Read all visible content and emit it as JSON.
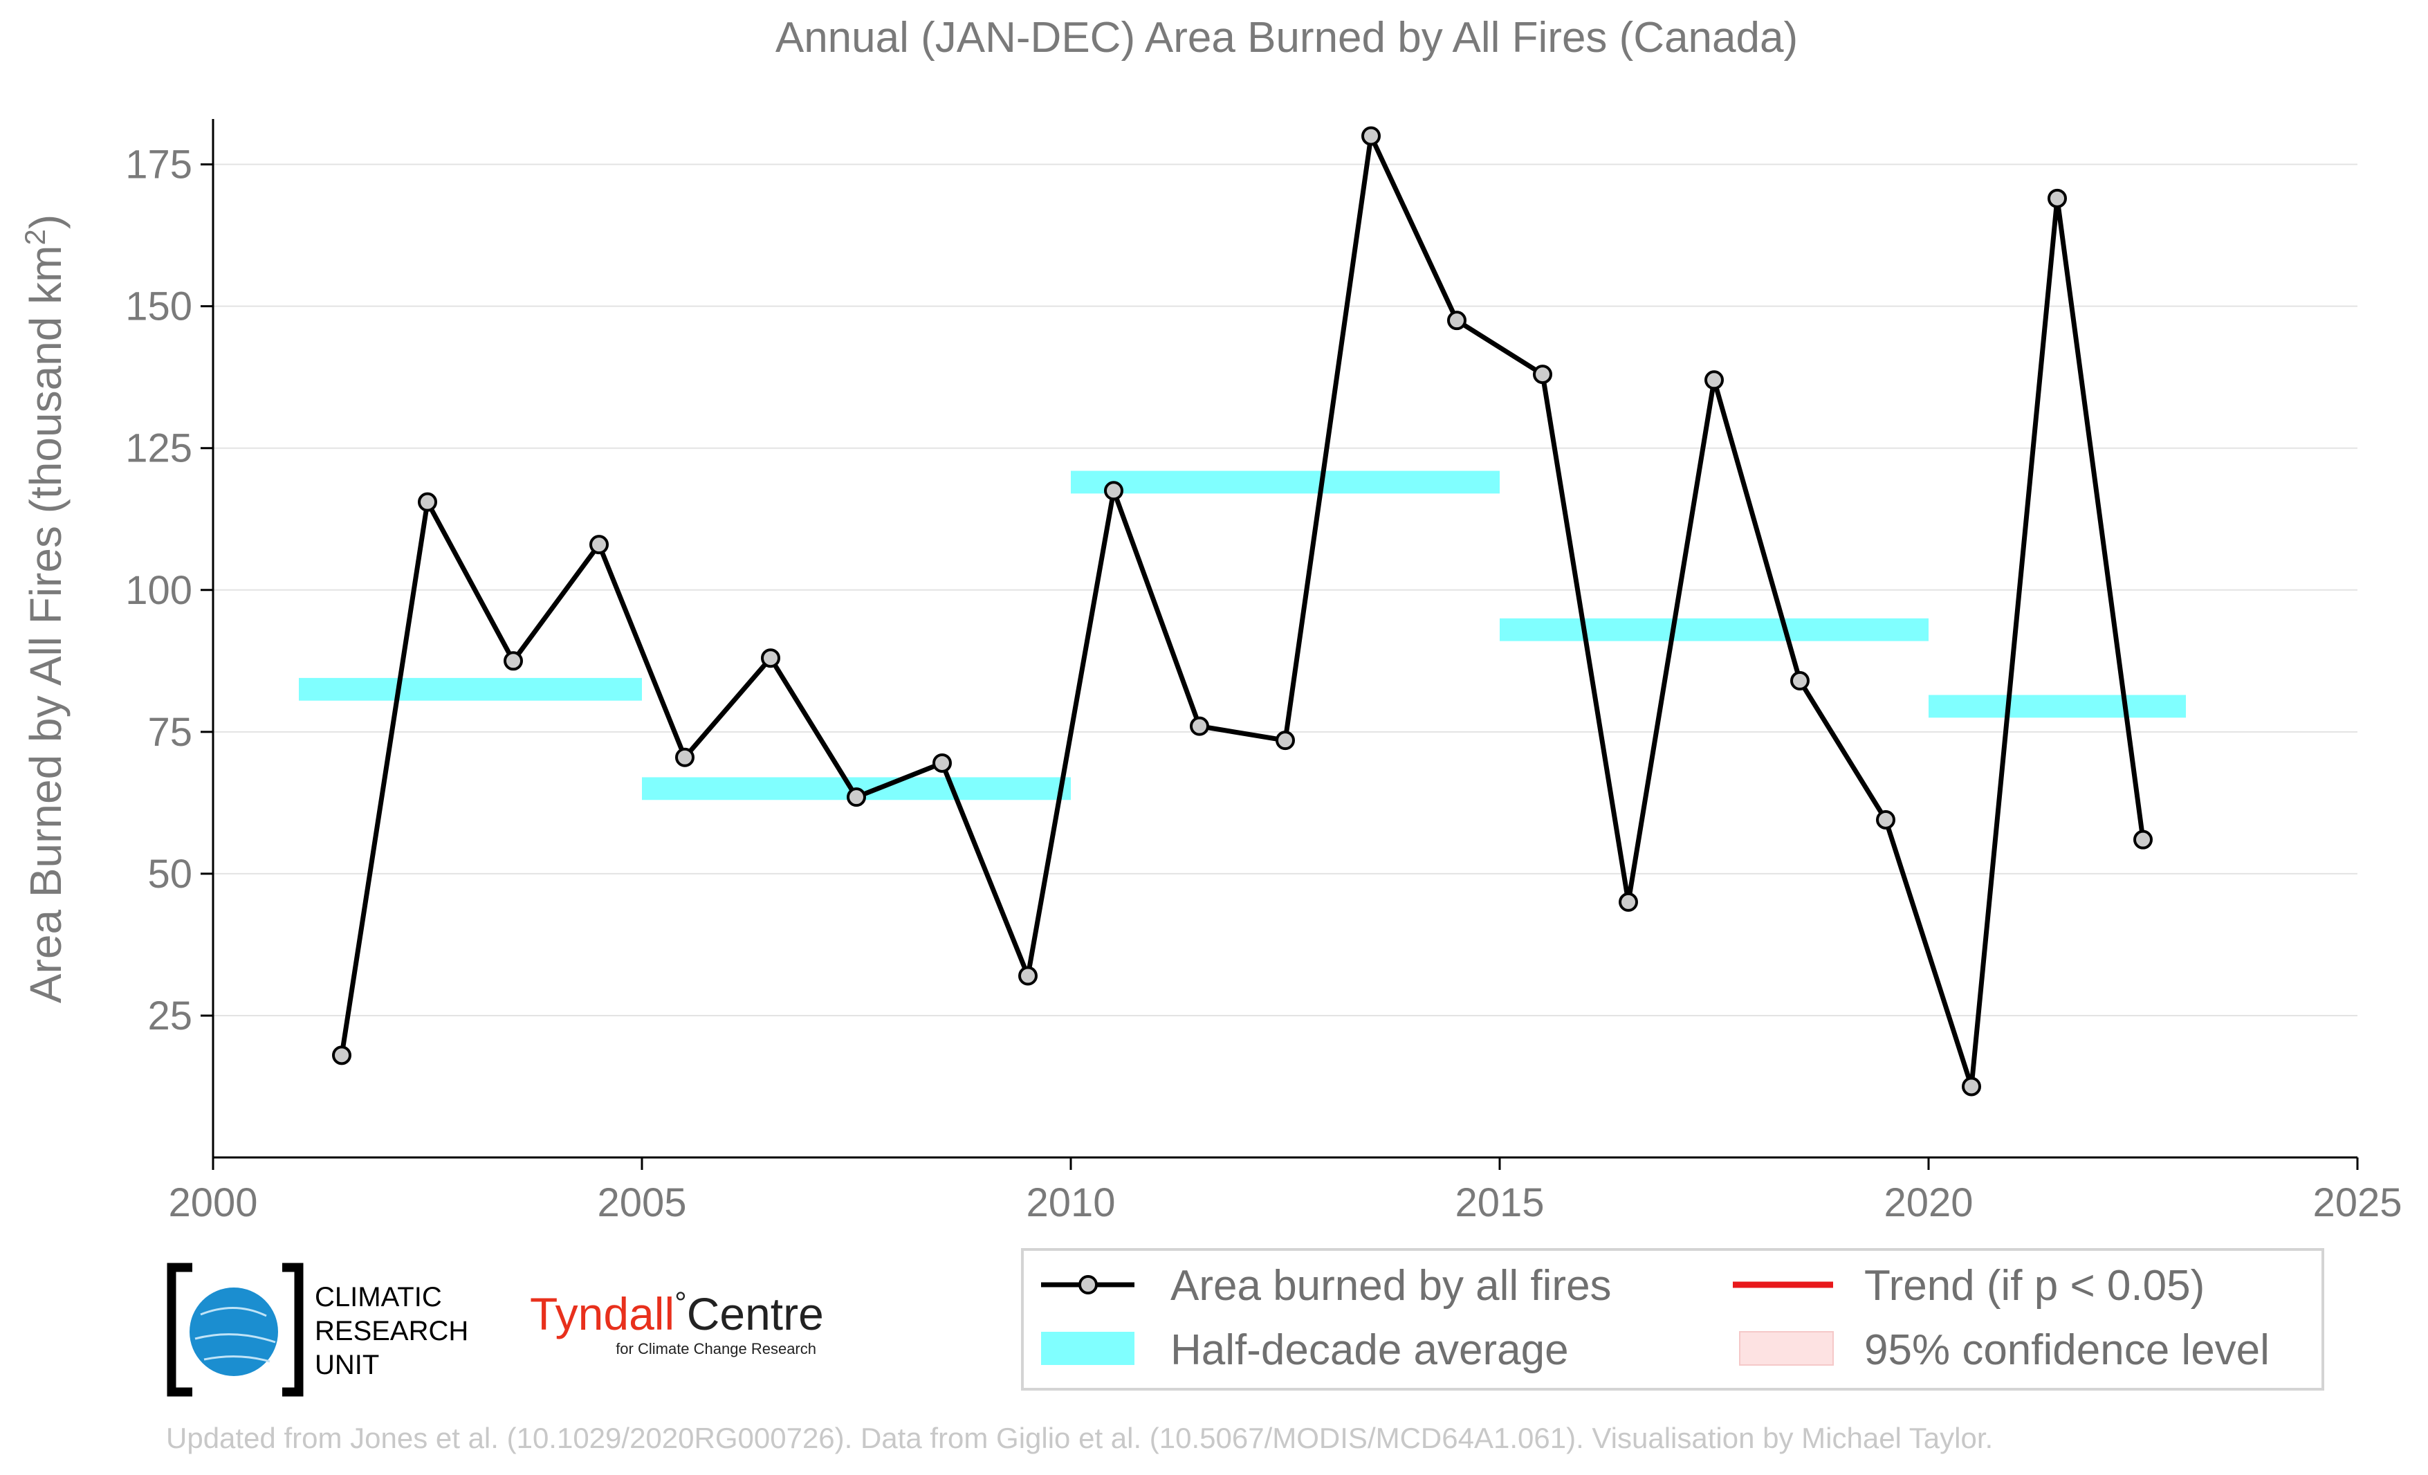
{
  "chart_data": {
    "type": "line",
    "title": "Annual (JAN-DEC) Area Burned by All Fires (Canada)",
    "xlabel": "",
    "ylabel": "Area Burned by All Fires (thousand km",
    "ylabel_sup": "2",
    "ylabel_end": ")",
    "xlim": [
      2000,
      2025
    ],
    "ylim": [
      0,
      183
    ],
    "xticks": [
      2000,
      2005,
      2010,
      2015,
      2020,
      2025
    ],
    "yticks": [
      25,
      50,
      75,
      100,
      125,
      150,
      175
    ],
    "grid": true,
    "series": [
      {
        "name": "Area burned by all fires",
        "x": [
          2001.5,
          2002.5,
          2003.5,
          2004.5,
          2005.5,
          2006.5,
          2007.5,
          2008.5,
          2009.5,
          2010.5,
          2011.5,
          2012.5,
          2013.5,
          2014.5,
          2015.5,
          2016.5,
          2017.5,
          2018.5,
          2019.5,
          2020.5,
          2021.5,
          2022.5
        ],
        "values": [
          18,
          115.5,
          87.5,
          108,
          70.5,
          88,
          63.5,
          69.5,
          32,
          117.5,
          76,
          73.5,
          180,
          147.5,
          138,
          45,
          137,
          84,
          59.5,
          12.5,
          169,
          56
        ],
        "color": "#000000",
        "marker_fill": "#cccccc"
      }
    ],
    "half_decade_average": [
      {
        "x0": 2001,
        "x1": 2005,
        "y_low": 80.5,
        "y_high": 84.5
      },
      {
        "x0": 2005,
        "x1": 2010,
        "y_low": 63,
        "y_high": 67
      },
      {
        "x0": 2010,
        "x1": 2015,
        "y_low": 117,
        "y_high": 121
      },
      {
        "x0": 2015,
        "x1": 2020,
        "y_low": 91,
        "y_high": 95
      },
      {
        "x0": 2020,
        "x1": 2023,
        "y_low": 77.5,
        "y_high": 81.5
      }
    ],
    "half_decade_color": "#80ffff",
    "legend": {
      "position": "bottom-right",
      "entries": [
        {
          "label": "Area burned by all fires",
          "style": "line-marker",
          "color": "#000000"
        },
        {
          "label": "Trend (if p < 0.05)",
          "style": "line",
          "color": "#e8191b"
        },
        {
          "label": "Half-decade average",
          "style": "band",
          "color": "#80ffff"
        },
        {
          "label": "95% confidence level",
          "style": "band",
          "color": "#fde2e2"
        }
      ]
    }
  },
  "logos": {
    "cru_lines": [
      "CLIMATIC",
      "RESEARCH",
      "UNIT"
    ],
    "tyndall_main": "Tyndall",
    "tyndall_degree": "°",
    "tyndall_centre": "Centre",
    "tyndall_sub": "for Climate Change Research"
  },
  "footer": "Updated from Jones et al. (10.1029/2020RG000726). Data from Giglio et al. (10.5067/MODIS/MCD64A1.061). Visualisation by Michael Taylor."
}
